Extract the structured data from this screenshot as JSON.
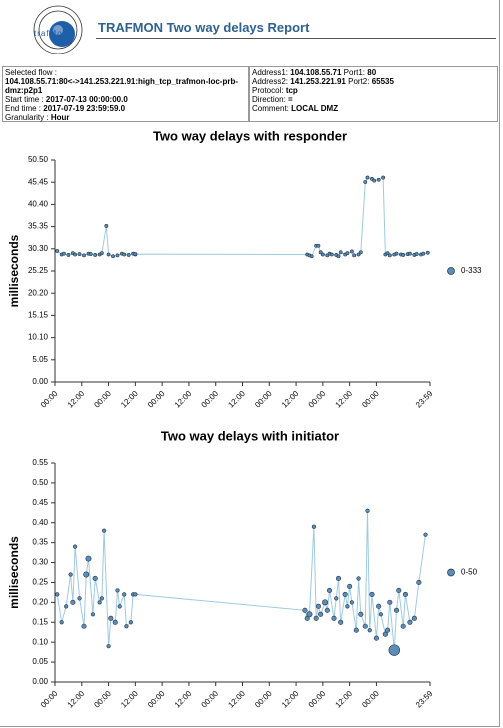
{
  "header": {
    "logo_text": "trafMon",
    "title": "TRAFMON Two way delays Report"
  },
  "info": {
    "left": [
      {
        "label": "Selected flow :",
        "value": "104.108.55.71:80<->141.253.221.91:high_tcp_trafmon-loc-prb-dmz:p2p1"
      },
      {
        "label": "Start time :",
        "value": "2017-07-13 00:00:00.0"
      },
      {
        "label": "End time :",
        "value": "2017-07-19 23:59:59.0"
      },
      {
        "label": "Granularity :",
        "value": "Hour"
      }
    ],
    "right": [
      [
        {
          "label": "Address1:",
          "value": "104.108.55.71"
        },
        {
          "label": "Port1:",
          "value": "80"
        }
      ],
      [
        {
          "label": "Address2:",
          "value": "141.253.221.91"
        },
        {
          "label": "Port2:",
          "value": "65535"
        }
      ],
      [
        {
          "label": "Protocol:",
          "value": "tcp"
        }
      ],
      [
        {
          "label": "Direction:",
          "value": "="
        }
      ],
      [
        {
          "label": "Comment:",
          "value": "LOCAL DMZ"
        }
      ]
    ]
  },
  "chart_data": [
    {
      "type": "line",
      "title": "Two way delays with responder",
      "y_label": "milliseconds",
      "xlim": [
        0,
        168
      ],
      "xticks": [
        {
          "value": 0,
          "label": "00:00"
        },
        {
          "value": 12,
          "label": "12:00"
        },
        {
          "value": 24,
          "label": "00:00"
        },
        {
          "value": 36,
          "label": "12:00"
        },
        {
          "value": 48,
          "label": "00:00"
        },
        {
          "value": 60,
          "label": "12:00"
        },
        {
          "value": 72,
          "label": "00:00"
        },
        {
          "value": 84,
          "label": "12:00"
        },
        {
          "value": 96,
          "label": "00:00"
        },
        {
          "value": 108,
          "label": "12:00"
        },
        {
          "value": 120,
          "label": "00:00"
        },
        {
          "value": 132,
          "label": "12:00"
        },
        {
          "value": 144,
          "label": "00:00"
        },
        {
          "value": 168,
          "label": "23:59"
        }
      ],
      "ylim": [
        0,
        50.5
      ],
      "yticks": [
        {
          "value": 0,
          "label": "0.00"
        },
        {
          "value": 5.05,
          "label": "5.05"
        },
        {
          "value": 10.1,
          "label": "10.10"
        },
        {
          "value": 15.15,
          "label": "15.15"
        },
        {
          "value": 20.2,
          "label": "20.20"
        },
        {
          "value": 25.25,
          "label": "25.25"
        },
        {
          "value": 30.3,
          "label": "30.30"
        },
        {
          "value": 35.35,
          "label": "35.35"
        },
        {
          "value": 40.4,
          "label": "40.40"
        },
        {
          "value": 45.45,
          "label": "45.45"
        },
        {
          "value": 50.5,
          "label": "50.50"
        }
      ],
      "x": [
        1,
        3,
        4,
        6,
        8,
        9,
        11,
        13,
        15,
        16,
        18,
        20,
        21,
        23,
        24,
        26,
        28,
        30,
        31,
        33,
        35,
        36,
        36,
        113,
        114,
        115,
        117,
        118,
        119,
        120,
        122,
        123,
        124,
        126,
        127,
        128,
        130,
        131,
        133,
        134,
        136,
        137,
        139,
        140,
        142,
        143,
        145,
        147,
        148,
        149,
        150,
        152,
        153,
        155,
        156,
        158,
        159,
        161,
        162,
        164,
        165,
        167
      ],
      "series": [
        {
          "name": "0-333",
          "color": "#5b8db8",
          "line_color": "#9ecae1",
          "values": [
            29.8,
            29,
            29.2,
            28.9,
            29.3,
            29,
            29.1,
            28.8,
            29.2,
            29.1,
            28.9,
            29,
            29.3,
            35.5,
            29,
            28.6,
            28.8,
            29.2,
            29,
            28.9,
            29.2,
            29,
            29.1,
            29,
            28.8,
            28.6,
            31,
            31,
            29.5,
            29,
            28.8,
            29.2,
            29,
            28.9,
            28.6,
            29.5,
            29,
            29.3,
            29.7,
            28.8,
            29,
            29.5,
            45.5,
            46.5,
            46.2,
            45.8,
            46,
            46.5,
            29,
            29.3,
            28.8,
            29,
            29.2,
            29,
            28.9,
            29.1,
            29.2,
            28.9,
            29.1,
            29,
            29.2,
            29.4
          ]
        }
      ]
    },
    {
      "type": "line",
      "title": "Two way delays with initiator",
      "y_label": "milliseconds",
      "xlim": [
        0,
        168
      ],
      "xticks": [
        {
          "value": 0,
          "label": "00:00"
        },
        {
          "value": 12,
          "label": "12:00"
        },
        {
          "value": 24,
          "label": "00:00"
        },
        {
          "value": 36,
          "label": "12:00"
        },
        {
          "value": 48,
          "label": "00:00"
        },
        {
          "value": 60,
          "label": "12:00"
        },
        {
          "value": 72,
          "label": "00:00"
        },
        {
          "value": 84,
          "label": "12:00"
        },
        {
          "value": 96,
          "label": "00:00"
        },
        {
          "value": 108,
          "label": "12:00"
        },
        {
          "value": 120,
          "label": "00:00"
        },
        {
          "value": 132,
          "label": "12:00"
        },
        {
          "value": 144,
          "label": "00:00"
        },
        {
          "value": 168,
          "label": "23:59"
        }
      ],
      "ylim": [
        0,
        0.55
      ],
      "yticks": [
        {
          "value": 0,
          "label": "0.00"
        },
        0.05,
        {
          "value": 0.1,
          "label": "0.10"
        },
        0.15,
        {
          "value": 0.2,
          "label": "0.20"
        },
        0.25,
        {
          "value": 0.3,
          "label": "0.30"
        },
        0.35,
        {
          "value": 0.4,
          "label": "0.40"
        },
        0.45,
        {
          "value": 0.5,
          "label": "0.50"
        },
        0.55
      ],
      "x": [
        1,
        3,
        5,
        7,
        8,
        9,
        11,
        13,
        14,
        15,
        17,
        18,
        20,
        21,
        22,
        24,
        25,
        27,
        28,
        29,
        31,
        32,
        34,
        35,
        36,
        112,
        113,
        114,
        116,
        117,
        118,
        119,
        121,
        122,
        123,
        125,
        126,
        127,
        128,
        130,
        131,
        132,
        133,
        135,
        136,
        137,
        139,
        140,
        141,
        142,
        144,
        145,
        146,
        148,
        149,
        150,
        152,
        153,
        154,
        156,
        157,
        159,
        161,
        163,
        166
      ],
      "series": [
        {
          "name": "0-50",
          "color": "#5b8db8",
          "line_color": "#9ecae1",
          "values": [
            0.22,
            0.15,
            0.19,
            0.27,
            0.2,
            0.34,
            0.21,
            0.14,
            0.27,
            0.31,
            0.17,
            0.26,
            0.2,
            0.21,
            0.38,
            0.09,
            0.16,
            0.15,
            0.23,
            0.19,
            0.22,
            0.14,
            0.15,
            0.22,
            0.22,
            0.18,
            0.16,
            0.17,
            0.39,
            0.16,
            0.19,
            0.17,
            0.2,
            0.18,
            0.23,
            0.16,
            0.21,
            0.26,
            0.15,
            0.22,
            0.19,
            0.24,
            0.2,
            0.13,
            0.26,
            0.17,
            0.14,
            0.43,
            0.13,
            0.22,
            0.11,
            0.19,
            0.17,
            0.12,
            0.13,
            0.2,
            0.08,
            0.18,
            0.23,
            0.14,
            0.22,
            0.15,
            0.16,
            0.25,
            0.37
          ],
          "sizes": [
            2,
            2,
            2,
            2,
            3,
            2,
            2,
            3,
            4,
            4,
            2,
            3,
            2,
            2,
            2,
            2,
            3,
            3,
            2,
            2,
            2,
            2,
            2,
            2,
            2,
            3,
            3,
            4,
            2,
            3,
            3,
            3,
            4,
            3,
            3,
            3,
            2,
            3,
            3,
            3,
            2,
            3,
            2,
            3,
            2,
            3,
            3,
            2,
            2,
            3,
            3,
            3,
            2,
            3,
            3,
            3,
            10,
            3,
            3,
            3,
            3,
            3,
            3,
            3,
            2
          ]
        }
      ]
    }
  ]
}
